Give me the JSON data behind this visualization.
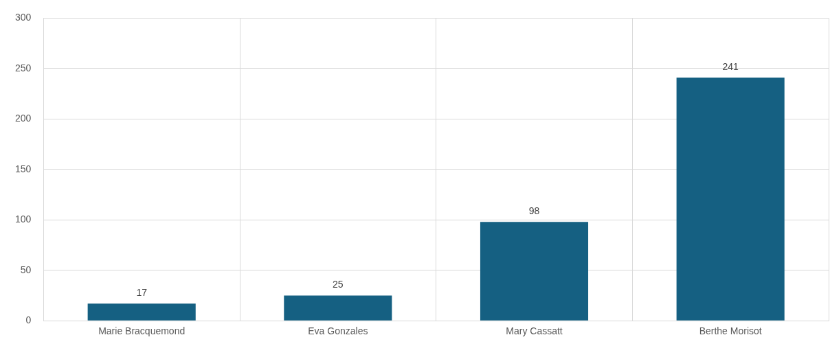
{
  "chart_data": {
    "type": "bar",
    "categories": [
      "Marie Bracquemond",
      "Eva Gonzales",
      "Mary Cassatt",
      "Berthe Morisot"
    ],
    "values": [
      17,
      25,
      98,
      241
    ],
    "color": "#156082",
    "ylim": [
      0,
      300
    ],
    "yticks": [
      0,
      50,
      100,
      150,
      200,
      250,
      300
    ],
    "grid": true,
    "data_labels": true
  }
}
